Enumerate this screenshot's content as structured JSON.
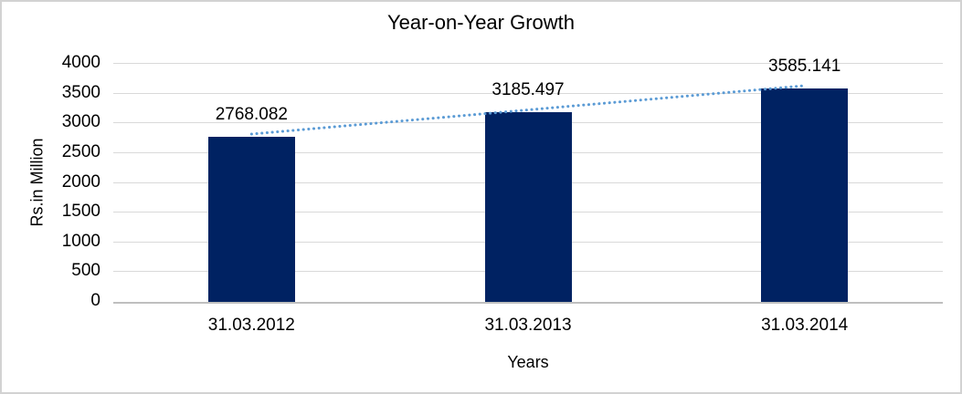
{
  "window": {
    "background_color": "#ffffff",
    "border_color": "#d2d2d2"
  },
  "chart_data": {
    "type": "bar",
    "title": "Year-on-Year Growth",
    "categories": [
      "31.03.2012",
      "31.03.2013",
      "31.03.2014"
    ],
    "values": [
      2768.082,
      3185.497,
      3585.141
    ],
    "data_labels": [
      "2768.082",
      "3185.497",
      "3585.141"
    ],
    "xlabel": "Years",
    "ylabel": "Rs.in Million",
    "ylim": [
      0,
      4000
    ],
    "yticks": [
      0,
      500,
      1000,
      1500,
      2000,
      2500,
      3000,
      3500,
      4000
    ],
    "ytick_labels": [
      "0",
      "500",
      "1000",
      "1500",
      "2000",
      "2500",
      "3000",
      "3500",
      "4000"
    ],
    "grid": true,
    "legend": "none",
    "bar_color": "#002262",
    "gridline_color": "#d9d9d9",
    "axis_line_color": "#bfbfbf",
    "text_color": "#000000",
    "trendline": {
      "shape": "linear",
      "style": "dotted",
      "color": "#5B9BD5"
    }
  }
}
